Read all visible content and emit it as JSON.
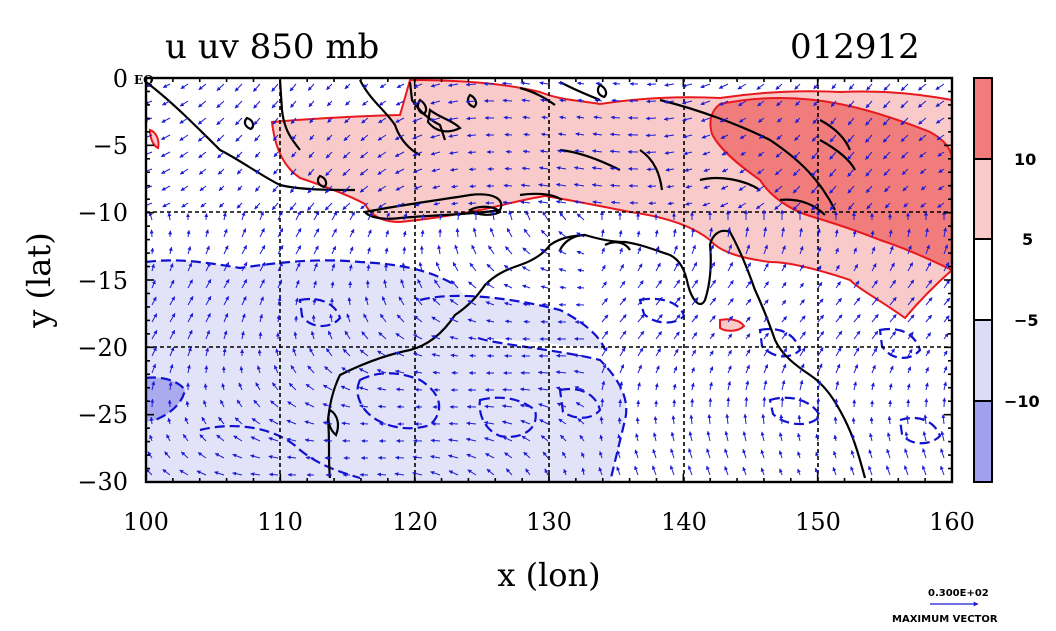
{
  "header": {
    "title": "u uv 850 mb",
    "date_code": "012912"
  },
  "map": {
    "xlabel": "x (lon)",
    "ylabel": "y (lat)",
    "x_ticks": [
      "100",
      "110",
      "120",
      "130",
      "140",
      "150",
      "160"
    ],
    "y_ticks": [
      "0",
      "−5",
      "−10",
      "−15",
      "−20",
      "−25",
      "−30"
    ],
    "eq_label": "EQ",
    "lon_range": [
      100,
      160
    ],
    "lat_range": [
      -30,
      0
    ]
  },
  "colorbar": {
    "labels": [
      "10",
      "5",
      "−5",
      "−10"
    ],
    "colors": [
      "#f07c7c",
      "#f9caca",
      "#ffffff",
      "#dcdcf7",
      "#a0a0ee"
    ]
  },
  "vector_key": {
    "magnitude": "0.300E+02",
    "caption": "MAXIMUM VECTOR"
  },
  "colors": {
    "positive_contour": "#e8191e",
    "negative_contour": "#1010d0",
    "vectors": "#1c1cd8",
    "coast": "#000000"
  }
}
